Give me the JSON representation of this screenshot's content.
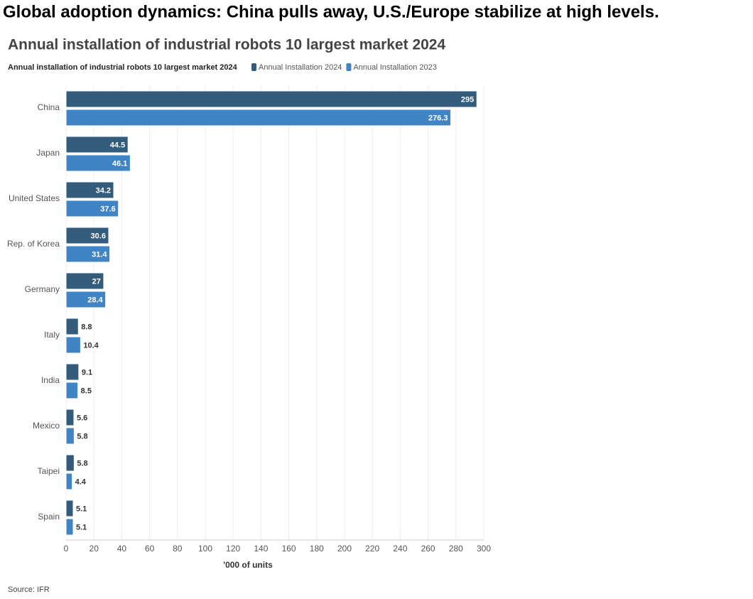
{
  "heading": "Global adoption dynamics: China pulls away, U.S./Europe stabilize at high levels.",
  "chart_data": {
    "type": "bar",
    "orientation": "horizontal",
    "title": "Annual installation of industrial robots 10 largest market 2024",
    "legend_title": "Annual installation of industrial robots 10 largest market 2024",
    "categories": [
      "China",
      "Japan",
      "United States",
      "Rep. of Korea",
      "Germany",
      "Italy",
      "India",
      "Mexico",
      "Taipei",
      "Spain"
    ],
    "series": [
      {
        "name": "Annual Installation 2024",
        "color": "#335b7b",
        "values": [
          295,
          44.5,
          34.2,
          30.6,
          27,
          8.8,
          9.1,
          5.6,
          5.8,
          5.1
        ]
      },
      {
        "name": "Annual Installation 2023",
        "color": "#3f84c4",
        "values": [
          276.3,
          46.1,
          37.6,
          31.4,
          28.4,
          10.4,
          8.5,
          5.8,
          4.4,
          5.1
        ]
      }
    ],
    "xlim": [
      0,
      300
    ],
    "xticks": [
      0,
      20,
      40,
      60,
      80,
      100,
      120,
      140,
      160,
      180,
      200,
      220,
      240,
      260,
      280,
      300
    ],
    "xlabel": "'000 of units",
    "grid": true,
    "source": "Source: IFR"
  }
}
